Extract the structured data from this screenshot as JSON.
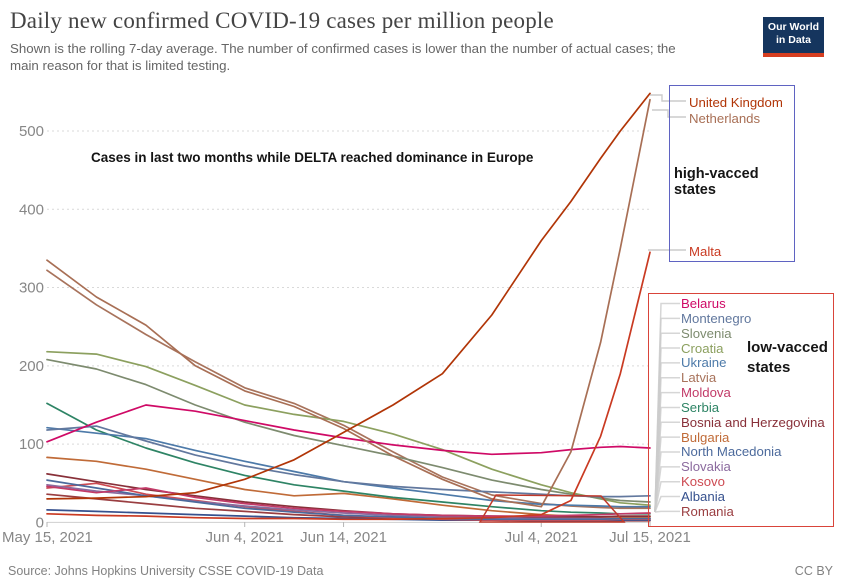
{
  "header": {
    "title": "Daily new confirmed COVID-19 cases per million people",
    "subtitle_line1": "Shown is the rolling 7-day average. The number of confirmed cases is lower than the number of actual cases; the",
    "subtitle_line2": "main reason for that is limited testing.",
    "logo": {
      "line1": "Our World",
      "line2": "in Data"
    }
  },
  "annotations": {
    "delta_note": "Cases in last two months while DELTA reached dominance in Europe",
    "high_group_label": "high-vacced states",
    "low_group_label_line1": "low-vacced",
    "low_group_label_line2": "states"
  },
  "footer": {
    "source": "Source: Johns Hopkins University CSSE COVID-19 Data",
    "license": "CC BY"
  },
  "colors": {
    "high_box_border": "#5f63c2",
    "low_box_border": "#d9443a",
    "annotation_box": "#c0392b",
    "grid": "#d9d9d9",
    "axis_text": "#878787",
    "leader": "#cccccc",
    "logo_bg": "#15355e",
    "logo_accent": "#d63e20"
  },
  "chart_data": {
    "type": "line",
    "title": "Daily new confirmed COVID-19 cases per million people",
    "xlabel": "",
    "ylabel": "",
    "x_unit": "days since May 15, 2021",
    "x_days": [
      0,
      5,
      10,
      15,
      20,
      25,
      30,
      35,
      40,
      45,
      50,
      53,
      56,
      58,
      61
    ],
    "x_ticks": [
      {
        "day": 0,
        "label": "May 15, 2021"
      },
      {
        "day": 20,
        "label": "Jun 4, 2021"
      },
      {
        "day": 30,
        "label": "Jun 14, 2021"
      },
      {
        "day": 50,
        "label": "Jul 4, 2021"
      },
      {
        "day": 61,
        "label": "Jul 15, 2021"
      }
    ],
    "y_ticks": [
      0,
      100,
      200,
      300,
      400,
      500
    ],
    "ylim": [
      0,
      560
    ],
    "grid": true,
    "legend_position": "right",
    "series": [
      {
        "name": "United Kingdom",
        "group": "high",
        "color": "#b13507",
        "values": [
          30,
          31,
          33,
          38,
          55,
          80,
          115,
          150,
          190,
          265,
          360,
          410,
          465,
          500,
          548
        ]
      },
      {
        "name": "Netherlands",
        "group": "high",
        "color": "#a86f55",
        "values": [
          335,
          288,
          252,
          200,
          168,
          148,
          120,
          85,
          55,
          30,
          20,
          90,
          230,
          350,
          540
        ]
      },
      {
        "name": "Malta",
        "group": "high",
        "color": "#c93a22",
        "values": [
          11,
          9,
          8,
          6,
          5,
          5,
          4,
          4,
          5,
          6,
          10,
          28,
          110,
          190,
          345
        ]
      },
      {
        "name": "Belarus",
        "group": "low",
        "color": "#cf0a66",
        "values": [
          103,
          128,
          150,
          142,
          130,
          118,
          108,
          99,
          92,
          87,
          89,
          93,
          96,
          97,
          95
        ]
      },
      {
        "name": "Montenegro",
        "group": "low",
        "color": "#62789e",
        "values": [
          118,
          123,
          104,
          86,
          72,
          61,
          52,
          46,
          42,
          39,
          36,
          34,
          33,
          33,
          34
        ]
      },
      {
        "name": "Slovenia",
        "group": "low",
        "color": "#7d8b6f",
        "values": [
          208,
          196,
          176,
          150,
          128,
          111,
          98,
          85,
          70,
          54,
          42,
          36,
          31,
          28,
          26
        ]
      },
      {
        "name": "Croatia",
        "group": "low",
        "color": "#8ca05f",
        "values": [
          218,
          215,
          199,
          175,
          150,
          138,
          129,
          113,
          93,
          68,
          48,
          38,
          30,
          25,
          22
        ]
      },
      {
        "name": "Ukraine",
        "group": "low",
        "color": "#4d7aa9",
        "values": [
          121,
          114,
          107,
          92,
          78,
          65,
          52,
          44,
          36,
          28,
          23,
          22,
          21,
          20,
          20
        ]
      },
      {
        "name": "Latvia",
        "group": "low",
        "color": "#a8735c",
        "values": [
          322,
          278,
          240,
          205,
          172,
          152,
          124,
          90,
          58,
          35,
          24,
          21,
          19,
          18,
          18
        ]
      },
      {
        "name": "Moldova",
        "group": "low",
        "color": "#c23a68",
        "values": [
          46,
          38,
          44,
          32,
          24,
          18,
          14,
          11,
          9,
          8,
          8,
          9,
          10,
          11,
          12
        ]
      },
      {
        "name": "Serbia",
        "group": "low",
        "color": "#2e8465",
        "values": [
          152,
          118,
          95,
          76,
          60,
          48,
          40,
          32,
          26,
          20,
          15,
          13,
          12,
          11,
          11
        ]
      },
      {
        "name": "Bosnia and Herzegovina",
        "group": "low",
        "color": "#883039",
        "values": [
          62,
          52,
          42,
          34,
          26,
          20,
          15,
          11,
          9,
          8,
          7,
          7,
          7,
          8,
          8
        ]
      },
      {
        "name": "Bulgaria",
        "group": "low",
        "color": "#c06b38",
        "values": [
          83,
          78,
          68,
          55,
          42,
          34,
          37,
          30,
          22,
          15,
          10,
          8,
          7,
          7,
          7
        ]
      },
      {
        "name": "North Macedonia",
        "group": "low",
        "color": "#4c6a9c",
        "values": [
          54,
          44,
          34,
          26,
          18,
          13,
          9,
          7,
          5,
          4,
          4,
          4,
          4,
          5,
          5
        ]
      },
      {
        "name": "Slovakia",
        "group": "low",
        "color": "#8b6a9e",
        "values": [
          48,
          40,
          34,
          27,
          21,
          16,
          12,
          9,
          7,
          6,
          5,
          5,
          5,
          5,
          5
        ]
      },
      {
        "name": "Kosovo",
        "group": "low",
        "color": "#cd4a52",
        "values": [
          44,
          50,
          36,
          28,
          20,
          14,
          9,
          6,
          4,
          3,
          3,
          3,
          3,
          4,
          4
        ]
      },
      {
        "name": "Albania",
        "group": "low",
        "color": "#36518e",
        "values": [
          16,
          14,
          12,
          10,
          8,
          6,
          5,
          4,
          3,
          3,
          2,
          2,
          2,
          3,
          3
        ]
      },
      {
        "name": "Romania",
        "group": "low",
        "color": "#9a3e41",
        "values": [
          36,
          30,
          24,
          18,
          14,
          10,
          7,
          5,
          4,
          3,
          2,
          2,
          2,
          2,
          2
        ]
      }
    ]
  }
}
